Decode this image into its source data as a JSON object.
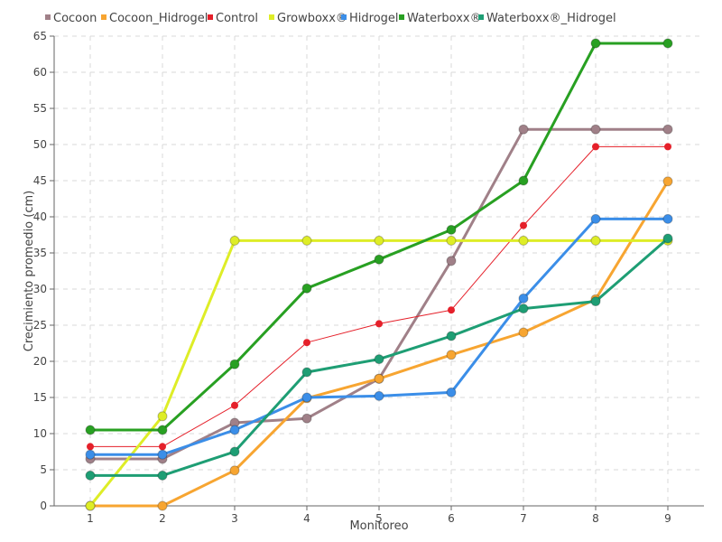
{
  "chart_data": {
    "type": "line",
    "title": "",
    "xlabel": "Monitoreo",
    "ylabel": "Crecimiento promedio (cm)",
    "x": [
      1,
      2,
      3,
      4,
      5,
      6,
      7,
      8,
      9
    ],
    "x_tick_labels": [
      "1",
      "2",
      "3",
      "4",
      "5",
      "6",
      "7",
      "8",
      "9"
    ],
    "ylim": [
      0,
      65
    ],
    "y_ticks": [
      0,
      5,
      10,
      15,
      20,
      25,
      30,
      35,
      40,
      45,
      50,
      55,
      60,
      65
    ],
    "y_tick_labels": [
      "0",
      "5",
      "10",
      "15",
      "20",
      "25",
      "30",
      "35",
      "40",
      "45",
      "50",
      "55",
      "60",
      "65"
    ],
    "grid": true,
    "legend_position": "top",
    "series": [
      {
        "name": "Cocoon",
        "color": "#a08088",
        "values": [
          6.5,
          6.5,
          11.5,
          12.1,
          17.6,
          33.9,
          52.1,
          52.1,
          52.1
        ]
      },
      {
        "name": "Cocoon_Hidrogel",
        "color": "#f7a531",
        "values": [
          0,
          0,
          4.9,
          14.9,
          17.6,
          20.9,
          24.0,
          28.6,
          44.9
        ]
      },
      {
        "name": "Control",
        "color": "#e5202a",
        "values": [
          8.2,
          8.2,
          13.9,
          22.6,
          25.2,
          27.1,
          38.8,
          49.7,
          49.7
        ]
      },
      {
        "name": "Growboxx®",
        "color": "#deed27",
        "values": [
          0,
          12.4,
          36.7,
          36.7,
          36.7,
          36.7,
          36.7,
          36.7,
          36.7
        ]
      },
      {
        "name": "Hidrogel",
        "color": "#3b8ee8",
        "values": [
          7.1,
          7.1,
          10.5,
          15.0,
          15.2,
          15.7,
          28.7,
          39.7,
          39.7
        ]
      },
      {
        "name": "Waterboxx®",
        "color": "#28a022",
        "values": [
          10.5,
          10.5,
          19.6,
          30.1,
          34.1,
          38.2,
          45.0,
          64.0,
          64.0
        ]
      },
      {
        "name": "Waterboxx®_Hidrogel",
        "color": "#1e9e74",
        "values": [
          4.2,
          4.2,
          7.5,
          18.5,
          20.3,
          23.5,
          27.3,
          28.3,
          37.0
        ]
      }
    ]
  }
}
